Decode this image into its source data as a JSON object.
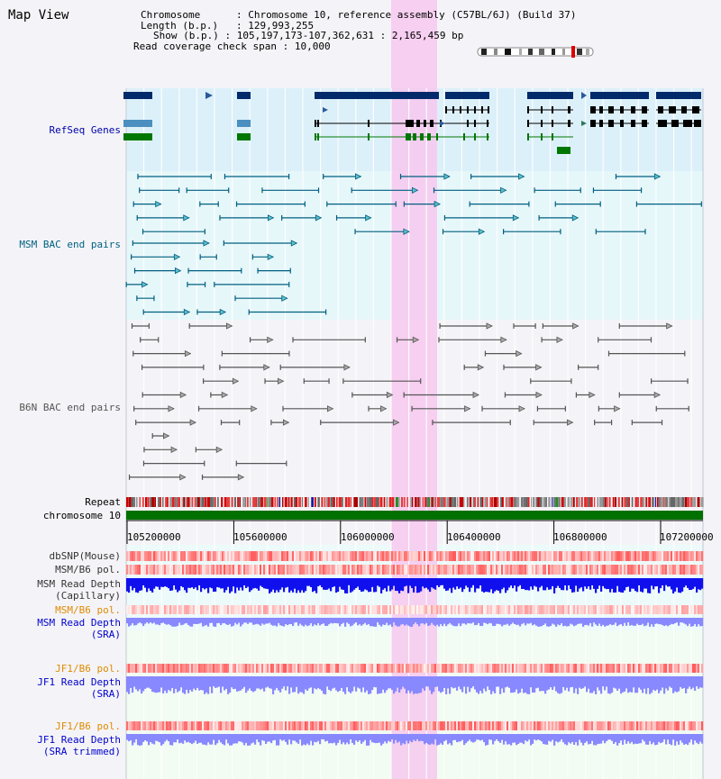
{
  "page": {
    "title": "Map View"
  },
  "info": {
    "chromosome_label": "Chromosome",
    "chromosome_value": "Chromosome 10, reference assembly (C57BL/6J) (Build 37)",
    "length_label": "Length (b.p.)",
    "length_value": "129,993,255",
    "show_label": "Show (b.p.)",
    "show_value": "105,197,173-107,362,631 : 2,165,459 bp",
    "span_label": "Read coverage check span",
    "span_value": "10,000"
  },
  "tracks": {
    "refseq": "RefSeq Genes",
    "msm_bac": "MSM BAC end pairs",
    "b6n_bac": "B6N BAC end pairs",
    "repeat": "Repeat",
    "chromosome": "chromosome 10",
    "dbsnp": "dbSNP(Mouse)",
    "msm_b6_pol": "MSM/B6 pol.",
    "msm_depth_cap_1": "MSM Read Depth",
    "msm_depth_cap_2": "(Capillary)",
    "msm_b6_pol2": "MSM/B6 pol.",
    "msm_depth_sra_1": "MSM Read Depth",
    "msm_depth_sra_2": "(SRA)",
    "jf1_b6_pol": "JF1/B6 pol.",
    "jf1_depth_sra_1": "JF1 Read Depth",
    "jf1_depth_sra_2": "(SRA)",
    "jf1_b6_pol2": "JF1/B6 pol.",
    "jf1_depth_trim_1": "JF1 Read Depth",
    "jf1_depth_trim_2": "(SRA trimmed)"
  },
  "axis": {
    "ticks": [
      "105200000",
      "105600000",
      "106000000",
      "106400000",
      "106800000",
      "107200000"
    ]
  },
  "colors": {
    "refseq_label": "#0000aa",
    "msm_bac_label": "#006080",
    "b6n_bac_label": "#555555",
    "orange_label": "#e08a00",
    "highlight": "#f7c8ef",
    "gene_dark": "#002a6a",
    "gene_green": "#007700",
    "depth_blue": "#1010ee",
    "depth_light": "#8888ff"
  }
}
